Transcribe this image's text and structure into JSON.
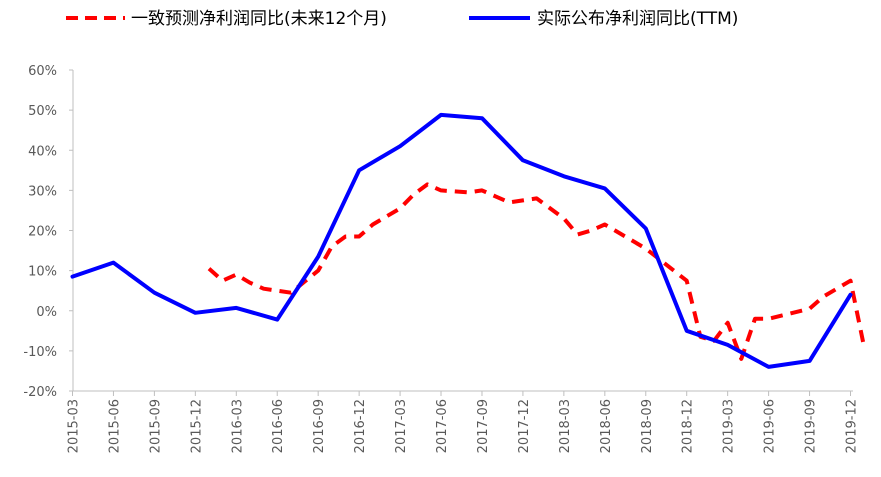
{
  "chart_data": {
    "type": "line",
    "title": "",
    "xlabel": "",
    "ylabel": "",
    "ylim": [
      -20,
      60
    ],
    "y_ticks": [
      -20,
      -10,
      0,
      10,
      20,
      30,
      40,
      50,
      60
    ],
    "y_tick_labels": [
      "-20%",
      "-10%",
      "0%",
      "10%",
      "20%",
      "30%",
      "40%",
      "50%",
      "60%"
    ],
    "x_tick_labels": [
      "2015-03",
      "2015-06",
      "2015-09",
      "2015-12",
      "2016-03",
      "2016-06",
      "2016-09",
      "2016-12",
      "2017-03",
      "2017-06",
      "2017-09",
      "2017-12",
      "2018-03",
      "2018-06",
      "2018-09",
      "2018-12",
      "2019-03",
      "2019-06",
      "2019-09",
      "2019-12"
    ],
    "legend_position": "top",
    "grid": false,
    "series": [
      {
        "name": "一致预测净利润同比(未来12个月)",
        "color": "#ff0000",
        "style": "dashed",
        "points": [
          [
            "2016-01",
            10.5
          ],
          [
            "2016-02",
            7.5
          ],
          [
            "2016-03",
            9
          ],
          [
            "2016-04",
            7
          ],
          [
            "2016-05",
            5.5
          ],
          [
            "2016-07",
            4.5
          ],
          [
            "2016-09",
            10
          ],
          [
            "2016-10",
            16
          ],
          [
            "2016-11",
            18.5
          ],
          [
            "2016-12",
            18.5
          ],
          [
            "2017-01",
            21.5
          ],
          [
            "2017-03",
            25.5
          ],
          [
            "2017-04",
            29
          ],
          [
            "2017-05",
            31.5
          ],
          [
            "2017-06",
            30
          ],
          [
            "2017-08",
            29.5
          ],
          [
            "2017-09",
            30
          ],
          [
            "2017-10",
            28.5
          ],
          [
            "2017-11",
            27
          ],
          [
            "2017-12",
            27.5
          ],
          [
            "2018-01",
            28
          ],
          [
            "2018-03",
            23
          ],
          [
            "2018-04",
            19
          ],
          [
            "2018-05",
            20
          ],
          [
            "2018-06",
            21.5
          ],
          [
            "2018-09",
            15.5
          ],
          [
            "2018-12",
            7.5
          ],
          [
            "2019-01",
            -6.5
          ],
          [
            "2019-02",
            -7.5
          ],
          [
            "2019-03",
            -3
          ],
          [
            "2019-04",
            -12
          ],
          [
            "2019-05",
            -2
          ],
          [
            "2019-06",
            -2
          ],
          [
            "2019-09",
            0.5
          ],
          [
            "2019-10",
            3.5
          ],
          [
            "2019-12",
            7.5
          ],
          [
            "2020-01",
            -9
          ]
        ]
      },
      {
        "name": "实际公布净利润同比(TTM)",
        "color": "#0000ff",
        "style": "solid",
        "points": [
          [
            "2015-03",
            8.5
          ],
          [
            "2015-06",
            12
          ],
          [
            "2015-09",
            4.5
          ],
          [
            "2015-12",
            -0.5
          ],
          [
            "2016-03",
            0.7
          ],
          [
            "2016-06",
            -2.2
          ],
          [
            "2016-09",
            13.5
          ],
          [
            "2016-12",
            35
          ],
          [
            "2017-03",
            41
          ],
          [
            "2017-06",
            48.8
          ],
          [
            "2017-09",
            48
          ],
          [
            "2017-12",
            37.5
          ],
          [
            "2018-03",
            33.5
          ],
          [
            "2018-06",
            30.5
          ],
          [
            "2018-09",
            20.5
          ],
          [
            "2018-12",
            -5
          ],
          [
            "2019-03",
            -8.5
          ],
          [
            "2019-06",
            -14
          ],
          [
            "2019-09",
            -12.5
          ],
          [
            "2019-12",
            4
          ]
        ]
      }
    ]
  }
}
